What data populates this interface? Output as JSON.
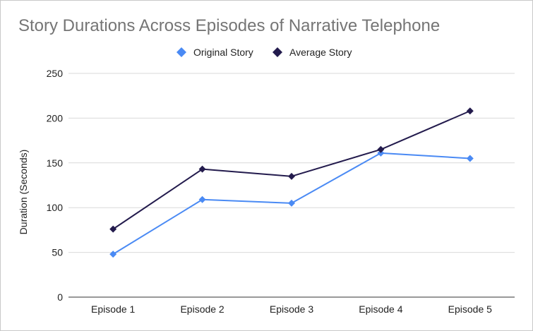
{
  "chart_data": {
    "type": "line",
    "title": "Story Durations Across Episodes of Narrative Telephone",
    "xlabel": "",
    "ylabel": "Duration (Seconds)",
    "categories": [
      "Episode 1",
      "Episode 2",
      "Episode 3",
      "Episode 4",
      "Episode 5"
    ],
    "ylim": [
      0,
      250
    ],
    "yticks": [
      0,
      50,
      100,
      150,
      200,
      250
    ],
    "grid": true,
    "legend_position": "top",
    "series": [
      {
        "name": "Original Story",
        "color": "#4a8af4",
        "marker": "diamond",
        "values": [
          48,
          109,
          105,
          161,
          155
        ]
      },
      {
        "name": "Average Story",
        "color": "#231b4d",
        "marker": "diamond",
        "values": [
          76,
          143,
          135,
          165,
          208
        ]
      }
    ]
  }
}
